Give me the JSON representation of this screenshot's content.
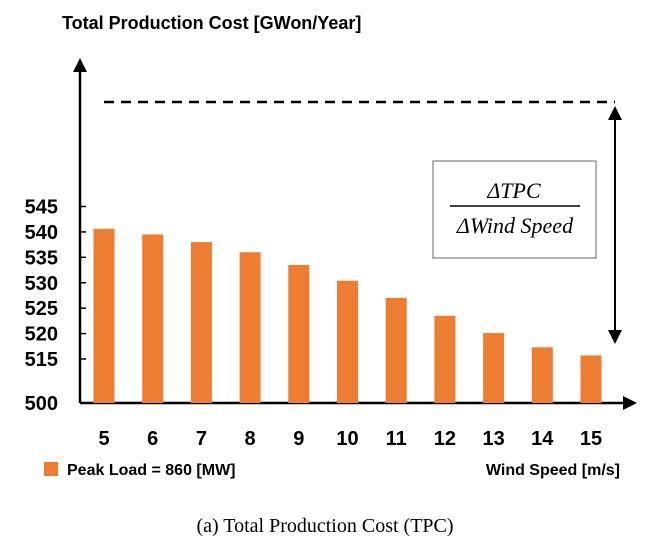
{
  "chart_data": {
    "type": "bar",
    "title": "Total Production Cost [GWon/Year]",
    "xlabel": "Wind Speed [m/s]",
    "categories": [
      "5",
      "6",
      "7",
      "8",
      "9",
      "10",
      "11",
      "12",
      "13",
      "14",
      "15"
    ],
    "series": [
      {
        "name": "Peak Load = 860 [MW]",
        "values": [
          540.6,
          539.5,
          538.0,
          536.0,
          533.5,
          530.4,
          527.0,
          523.5,
          520.1,
          517.3,
          515.7
        ]
      }
    ],
    "yticks": [
      "500",
      "515",
      "520",
      "525",
      "530",
      "535",
      "540",
      "545"
    ],
    "annotation": {
      "numerator": "ΔTPC",
      "denominator": "ΔWind Speed"
    },
    "legend_position": "bottom-left",
    "grid": false,
    "bar_color": "#ED7D31"
  },
  "caption": "(a)  Total  Production  Cost  (TPC)"
}
